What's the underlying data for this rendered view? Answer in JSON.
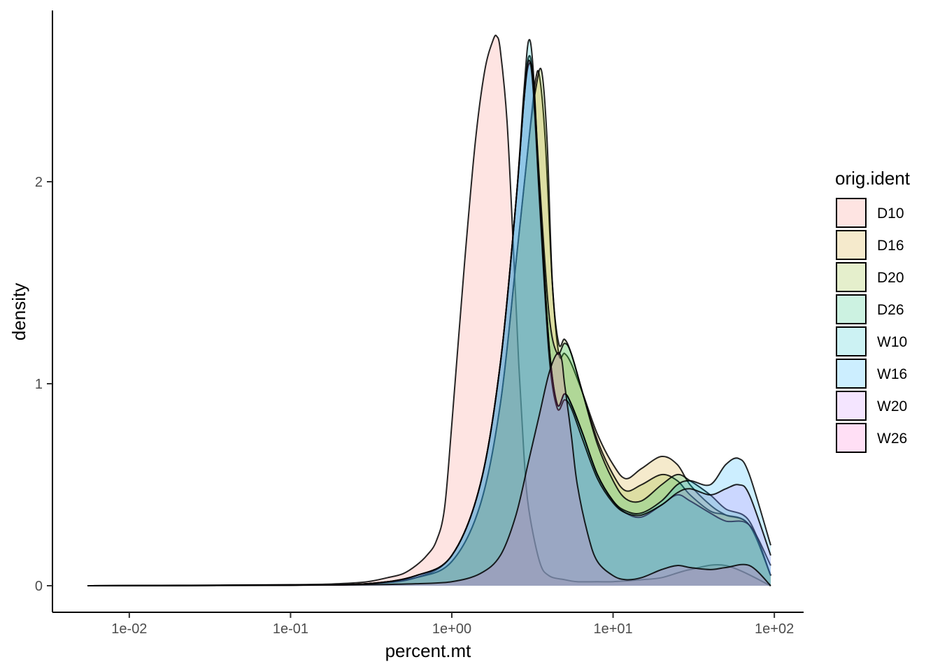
{
  "chart_data": {
    "type": "area",
    "subtype": "density",
    "title": "",
    "xlabel": "percent.mt",
    "ylabel": "density",
    "x_scale": "log10",
    "xlim": [
      0.0055,
      95
    ],
    "ylim": [
      -0.13,
      2.85
    ],
    "x_ticks": [
      {
        "value": 0.01,
        "label": "1e-02"
      },
      {
        "value": 0.1,
        "label": "1e-01"
      },
      {
        "value": 1,
        "label": "1e+00"
      },
      {
        "value": 10,
        "label": "1e+01"
      },
      {
        "value": 100,
        "label": "1e+02"
      }
    ],
    "y_ticks": [
      {
        "value": 0,
        "label": "0"
      },
      {
        "value": 1,
        "label": "1"
      },
      {
        "value": 2,
        "label": "2"
      }
    ],
    "grid": false,
    "legend": {
      "title": "orig.ident",
      "position": "right"
    },
    "series": [
      {
        "name": "D10",
        "color": "#F8766D",
        "x": [
          0.0055,
          0.1,
          0.2,
          0.3,
          0.4,
          0.5,
          0.6,
          0.7,
          0.8,
          0.9,
          1.0,
          1.2,
          1.4,
          1.6,
          1.8,
          1.9,
          2.0,
          2.2,
          2.4,
          2.6,
          2.8,
          3.0,
          3.5,
          4.0,
          5.0,
          6.0,
          8.0,
          10.0,
          15.0,
          20.0,
          30.0,
          50.0,
          95.0
        ],
        "y": [
          0,
          0.005,
          0.01,
          0.02,
          0.04,
          0.06,
          0.1,
          0.15,
          0.22,
          0.38,
          0.8,
          1.6,
          2.2,
          2.55,
          2.7,
          2.72,
          2.65,
          2.3,
          1.7,
          1.1,
          0.65,
          0.38,
          0.12,
          0.05,
          0.03,
          0.02,
          0.02,
          0.02,
          0.03,
          0.04,
          0.08,
          0.1,
          0.0
        ]
      },
      {
        "name": "D16",
        "color": "#CD9600",
        "x": [
          0.0055,
          0.1,
          0.3,
          0.6,
          1.0,
          1.5,
          2.0,
          2.5,
          3.0,
          3.3,
          3.5,
          3.8,
          4.2,
          4.6,
          5.0,
          5.5,
          6.5,
          8.0,
          10.0,
          12.0,
          15.0,
          20.0,
          25.0,
          30.0,
          40.0,
          50.0,
          70.0,
          95.0
        ],
        "y": [
          0,
          0.003,
          0.01,
          0.04,
          0.12,
          0.4,
          0.9,
          1.6,
          2.2,
          2.5,
          2.52,
          2.2,
          1.5,
          1.15,
          1.15,
          1.1,
          0.95,
          0.75,
          0.6,
          0.53,
          0.58,
          0.64,
          0.6,
          0.5,
          0.4,
          0.35,
          0.3,
          0.05
        ]
      },
      {
        "name": "D20",
        "color": "#7CAE00",
        "x": [
          0.0055,
          0.1,
          0.3,
          0.6,
          1.0,
          1.5,
          2.0,
          2.5,
          3.0,
          3.3,
          3.6,
          3.9,
          4.2,
          4.6,
          5.0,
          5.5,
          6.5,
          8.0,
          10.0,
          12.0,
          15.0,
          20.0,
          25.0,
          30.0,
          40.0,
          50.0,
          70.0,
          95.0
        ],
        "y": [
          0,
          0.003,
          0.01,
          0.04,
          0.12,
          0.4,
          0.9,
          1.6,
          2.2,
          2.45,
          2.55,
          2.2,
          1.5,
          1.2,
          1.22,
          1.15,
          0.95,
          0.72,
          0.55,
          0.47,
          0.5,
          0.55,
          0.52,
          0.45,
          0.37,
          0.35,
          0.3,
          0.05
        ]
      },
      {
        "name": "D26",
        "color": "#00BE67",
        "x": [
          0.0055,
          0.1,
          0.3,
          0.6,
          1.0,
          1.5,
          2.0,
          2.5,
          2.8,
          3.0,
          3.2,
          3.5,
          4.0,
          4.5,
          5.0,
          5.5,
          6.5,
          8.0,
          10.0,
          12.0,
          15.0,
          20.0,
          25.0,
          30.0,
          40.0,
          50.0,
          70.0,
          95.0
        ],
        "y": [
          0,
          0.003,
          0.01,
          0.04,
          0.15,
          0.5,
          1.1,
          1.9,
          2.4,
          2.62,
          2.5,
          2.0,
          1.35,
          1.15,
          1.2,
          1.15,
          0.95,
          0.7,
          0.52,
          0.43,
          0.42,
          0.5,
          0.55,
          0.52,
          0.45,
          0.38,
          0.32,
          0.05
        ]
      },
      {
        "name": "W10",
        "color": "#00BFC4",
        "x": [
          0.0055,
          0.1,
          0.3,
          0.6,
          1.0,
          1.5,
          2.0,
          2.5,
          2.8,
          3.0,
          3.2,
          3.5,
          4.0,
          4.5,
          5.0,
          5.5,
          6.5,
          8.0,
          10.0,
          12.0,
          15.0,
          20.0,
          25.0,
          30.0,
          40.0,
          50.0,
          70.0,
          95.0
        ],
        "y": [
          0,
          0.003,
          0.01,
          0.05,
          0.15,
          0.5,
          1.1,
          1.9,
          2.45,
          2.7,
          2.55,
          1.95,
          1.2,
          0.9,
          0.95,
          0.9,
          0.75,
          0.55,
          0.42,
          0.36,
          0.34,
          0.4,
          0.45,
          0.42,
          0.36,
          0.32,
          0.3,
          0.1
        ]
      },
      {
        "name": "W16",
        "color": "#00A9FF",
        "x": [
          0.0055,
          0.1,
          0.3,
          0.6,
          1.0,
          1.5,
          2.0,
          2.5,
          2.8,
          3.0,
          3.2,
          3.5,
          4.0,
          4.5,
          5.0,
          5.5,
          6.5,
          8.0,
          10.0,
          12.0,
          15.0,
          20.0,
          25.0,
          30.0,
          40.0,
          50.0,
          60.0,
          70.0,
          95.0
        ],
        "y": [
          0,
          0.003,
          0.01,
          0.05,
          0.15,
          0.5,
          1.1,
          1.9,
          2.4,
          2.58,
          2.5,
          1.95,
          1.2,
          0.9,
          0.95,
          0.9,
          0.75,
          0.55,
          0.42,
          0.37,
          0.36,
          0.42,
          0.5,
          0.52,
          0.5,
          0.6,
          0.63,
          0.55,
          0.2
        ]
      },
      {
        "name": "W20",
        "color": "#C77CFF",
        "x": [
          0.0055,
          0.1,
          0.3,
          0.6,
          1.0,
          1.5,
          2.0,
          2.5,
          2.8,
          3.0,
          3.2,
          3.5,
          4.0,
          4.5,
          5.0,
          5.5,
          6.5,
          8.0,
          10.0,
          12.0,
          15.0,
          20.0,
          25.0,
          30.0,
          40.0,
          50.0,
          60.0,
          70.0,
          95.0
        ],
        "y": [
          0,
          0.003,
          0.01,
          0.05,
          0.15,
          0.5,
          1.1,
          1.9,
          2.4,
          2.6,
          2.45,
          1.9,
          1.15,
          0.88,
          0.92,
          0.88,
          0.72,
          0.53,
          0.41,
          0.36,
          0.35,
          0.4,
          0.46,
          0.48,
          0.45,
          0.48,
          0.5,
          0.45,
          0.15
        ]
      },
      {
        "name": "W26",
        "color": "#FF61CC",
        "x": [
          0.0055,
          0.1,
          0.3,
          0.6,
          1.0,
          1.5,
          2.0,
          2.5,
          3.0,
          3.5,
          4.0,
          4.5,
          4.8,
          5.0,
          5.5,
          6.0,
          7.0,
          8.0,
          10.0,
          12.0,
          15.0,
          20.0,
          25.0,
          30.0,
          40.0,
          50.0,
          70.0,
          95.0
        ],
        "y": [
          0,
          0.002,
          0.005,
          0.01,
          0.02,
          0.06,
          0.15,
          0.35,
          0.62,
          0.85,
          1.05,
          1.15,
          1.12,
          1.0,
          0.75,
          0.5,
          0.25,
          0.12,
          0.05,
          0.03,
          0.04,
          0.08,
          0.1,
          0.09,
          0.08,
          0.09,
          0.1,
          0.0
        ]
      }
    ]
  }
}
